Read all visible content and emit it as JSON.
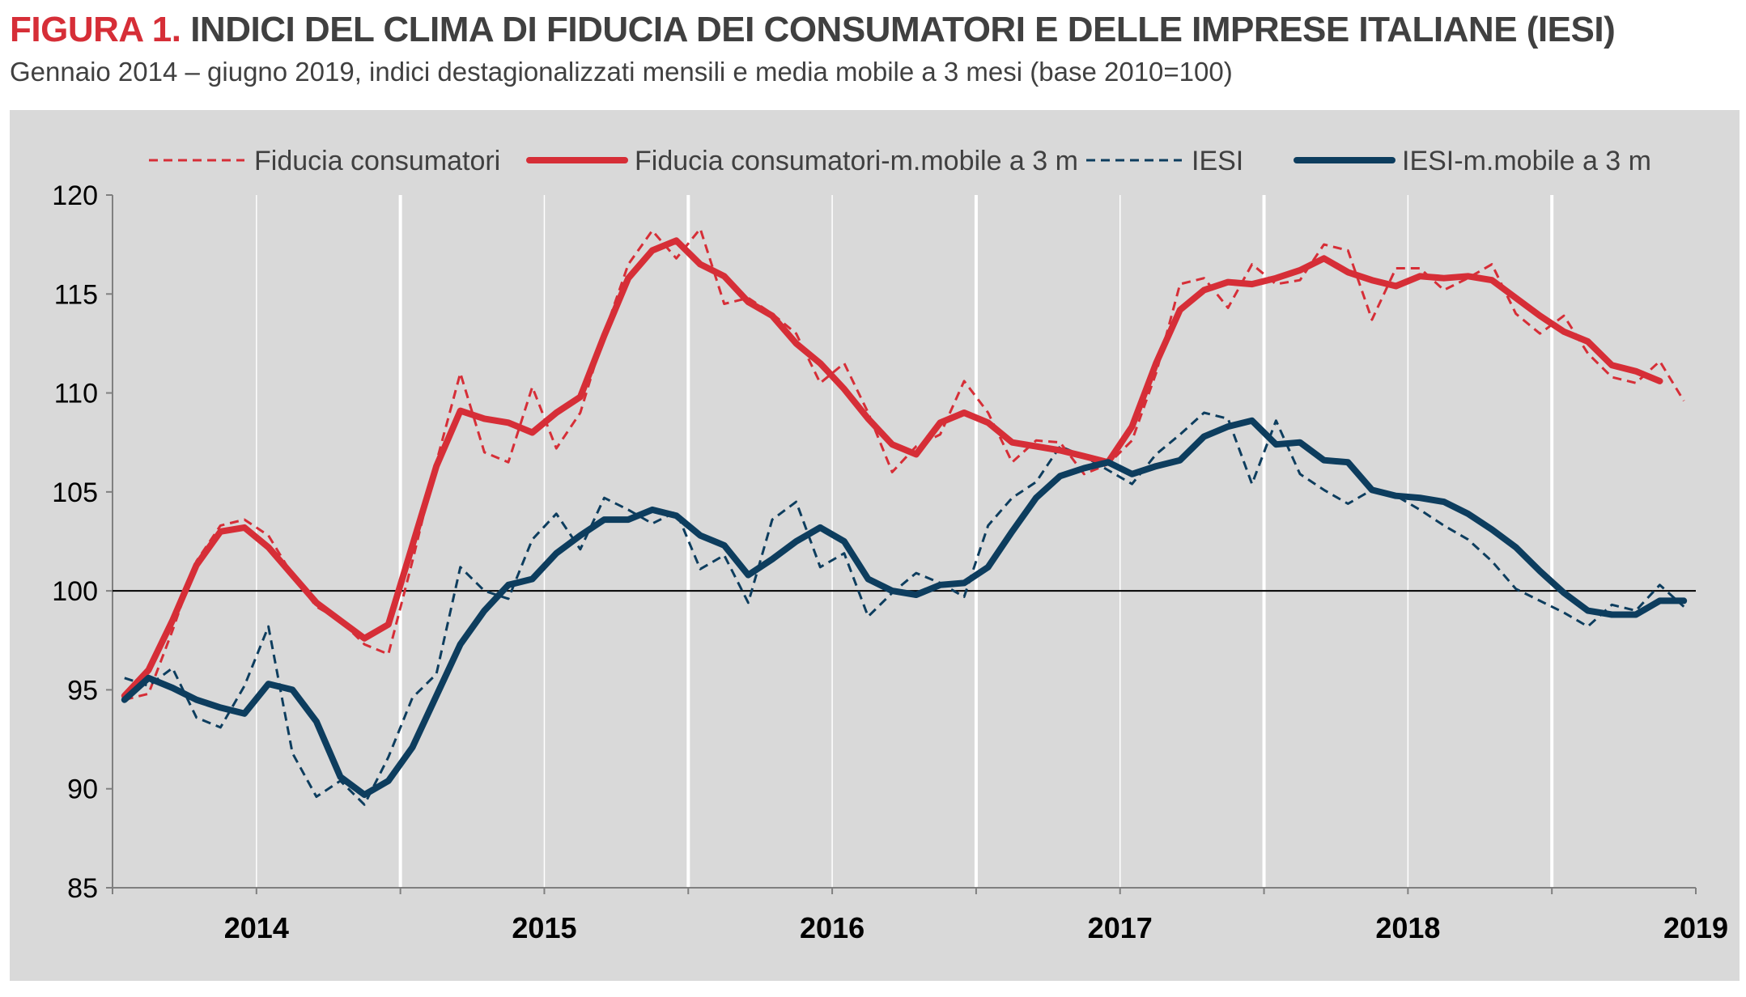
{
  "figure": {
    "label": "FIGURA 1.",
    "title": "INDICI DEL CLIMA DI FIDUCIA DEI CONSUMATORI E DELLE IMPRESE ITALIANE (IESI)",
    "subtitle": "Gennaio 2014 – giugno 2019, indici destagionalizzati mensili e media mobile a 3 mesi (base 2010=100)"
  },
  "colors": {
    "background": "#d9d9d9",
    "consumer": "#d62e37",
    "iesi": "#0d3d5e",
    "reference_line": "#000000",
    "year_separator": "#ffffff",
    "label_red": "#d62e37",
    "text": "#404040"
  },
  "chart_data": {
    "type": "line",
    "title": "INDICI DEL CLIMA DI FIDUCIA DEI CONSUMATORI E DELLE IMPRESE ITALIANE (IESI)",
    "xlabel": "",
    "ylabel": "",
    "ylim": [
      85,
      120
    ],
    "yticks": [
      120,
      115,
      110,
      105,
      100,
      95,
      90,
      85
    ],
    "reference_line": 100,
    "x_start": "2014-01",
    "x_months": 66,
    "year_labels": [
      "2014",
      "2015",
      "2016",
      "2017",
      "2018",
      "2019"
    ],
    "legend_position": "top",
    "series": [
      {
        "name": "Fiducia consumatori",
        "style": "dashed",
        "color": "#d62e37",
        "values": [
          94.5,
          94.8,
          98.0,
          101.5,
          103.3,
          103.6,
          102.8,
          100.8,
          99.2,
          98.5,
          97.3,
          96.8,
          101.5,
          106.5,
          111.0,
          107.0,
          106.5,
          110.3,
          107.2,
          109.0,
          113.0,
          116.5,
          118.2,
          116.8,
          118.3,
          114.5,
          114.8,
          114.0,
          113.0,
          110.5,
          111.5,
          109.0,
          106.0,
          107.3,
          107.9,
          110.6,
          109.0,
          106.5,
          107.6,
          107.5,
          105.9,
          106.4,
          107.6,
          111.0,
          115.5,
          115.8,
          114.3,
          116.5,
          115.5,
          115.7,
          117.5,
          117.2,
          113.7,
          116.3,
          116.3,
          115.2,
          115.8,
          116.5,
          114.0,
          113.0,
          113.9,
          112.0,
          110.8,
          110.5,
          111.6,
          109.6
        ]
      },
      {
        "name": "Fiducia consumatori-m.mobile a 3 m",
        "style": "solid",
        "color": "#d62e37",
        "values": [
          94.7,
          96.0,
          98.5,
          101.3,
          103.0,
          103.2,
          102.2,
          100.8,
          99.4,
          98.5,
          97.6,
          98.3,
          102.3,
          106.3,
          109.1,
          108.7,
          108.5,
          108.0,
          109.0,
          109.8,
          112.9,
          115.8,
          117.2,
          117.7,
          116.5,
          115.9,
          114.6,
          113.9,
          112.5,
          111.5,
          110.2,
          108.7,
          107.4,
          106.9,
          108.5,
          109.0,
          108.5,
          107.5,
          107.3,
          107.1,
          106.8,
          106.5,
          108.3,
          111.5,
          114.2,
          115.2,
          115.6,
          115.5,
          115.8,
          116.2,
          116.8,
          116.1,
          115.7,
          115.4,
          115.9,
          115.8,
          115.9,
          115.7,
          114.8,
          113.9,
          113.1,
          112.6,
          111.4,
          111.1,
          110.6,
          null
        ]
      },
      {
        "name": "IESI",
        "style": "dashed",
        "color": "#0d3d5e",
        "values": [
          95.6,
          95.2,
          96.1,
          93.6,
          93.1,
          95.2,
          98.2,
          91.8,
          89.6,
          90.4,
          89.2,
          91.6,
          94.6,
          95.8,
          101.2,
          100.0,
          99.6,
          102.6,
          103.9,
          102.1,
          104.7,
          104.1,
          103.4,
          104.0,
          101.1,
          101.8,
          99.4,
          103.6,
          104.5,
          101.2,
          101.9,
          98.7,
          99.9,
          100.9,
          100.4,
          99.7,
          103.3,
          104.7,
          105.5,
          107.3,
          106.8,
          106.1,
          105.4,
          106.9,
          107.9,
          109.0,
          108.7,
          105.4,
          108.6,
          105.9,
          105.1,
          104.4,
          105.1,
          104.8,
          104.1,
          103.3,
          102.6,
          101.5,
          100.1,
          99.5,
          98.9,
          98.2,
          99.3,
          99.0,
          100.3,
          99.2
        ]
      },
      {
        "name": "IESI-m.mobile a 3 m",
        "style": "solid",
        "color": "#0d3d5e",
        "values": [
          94.5,
          95.6,
          95.1,
          94.5,
          94.1,
          93.8,
          95.3,
          95.0,
          93.4,
          90.6,
          89.7,
          90.4,
          92.1,
          94.7,
          97.3,
          99.0,
          100.3,
          100.6,
          101.9,
          102.8,
          103.6,
          103.6,
          104.1,
          103.8,
          102.8,
          102.3,
          100.8,
          101.6,
          102.5,
          103.2,
          102.5,
          100.6,
          100.0,
          99.8,
          100.3,
          100.4,
          101.2,
          103.0,
          104.7,
          105.8,
          106.2,
          106.5,
          105.9,
          106.3,
          106.6,
          107.8,
          108.3,
          108.6,
          107.4,
          107.5,
          106.6,
          106.5,
          105.1,
          104.8,
          104.7,
          104.5,
          103.9,
          103.1,
          102.2,
          101.0,
          99.9,
          99.0,
          98.8,
          98.8,
          99.5,
          99.5
        ]
      }
    ]
  }
}
